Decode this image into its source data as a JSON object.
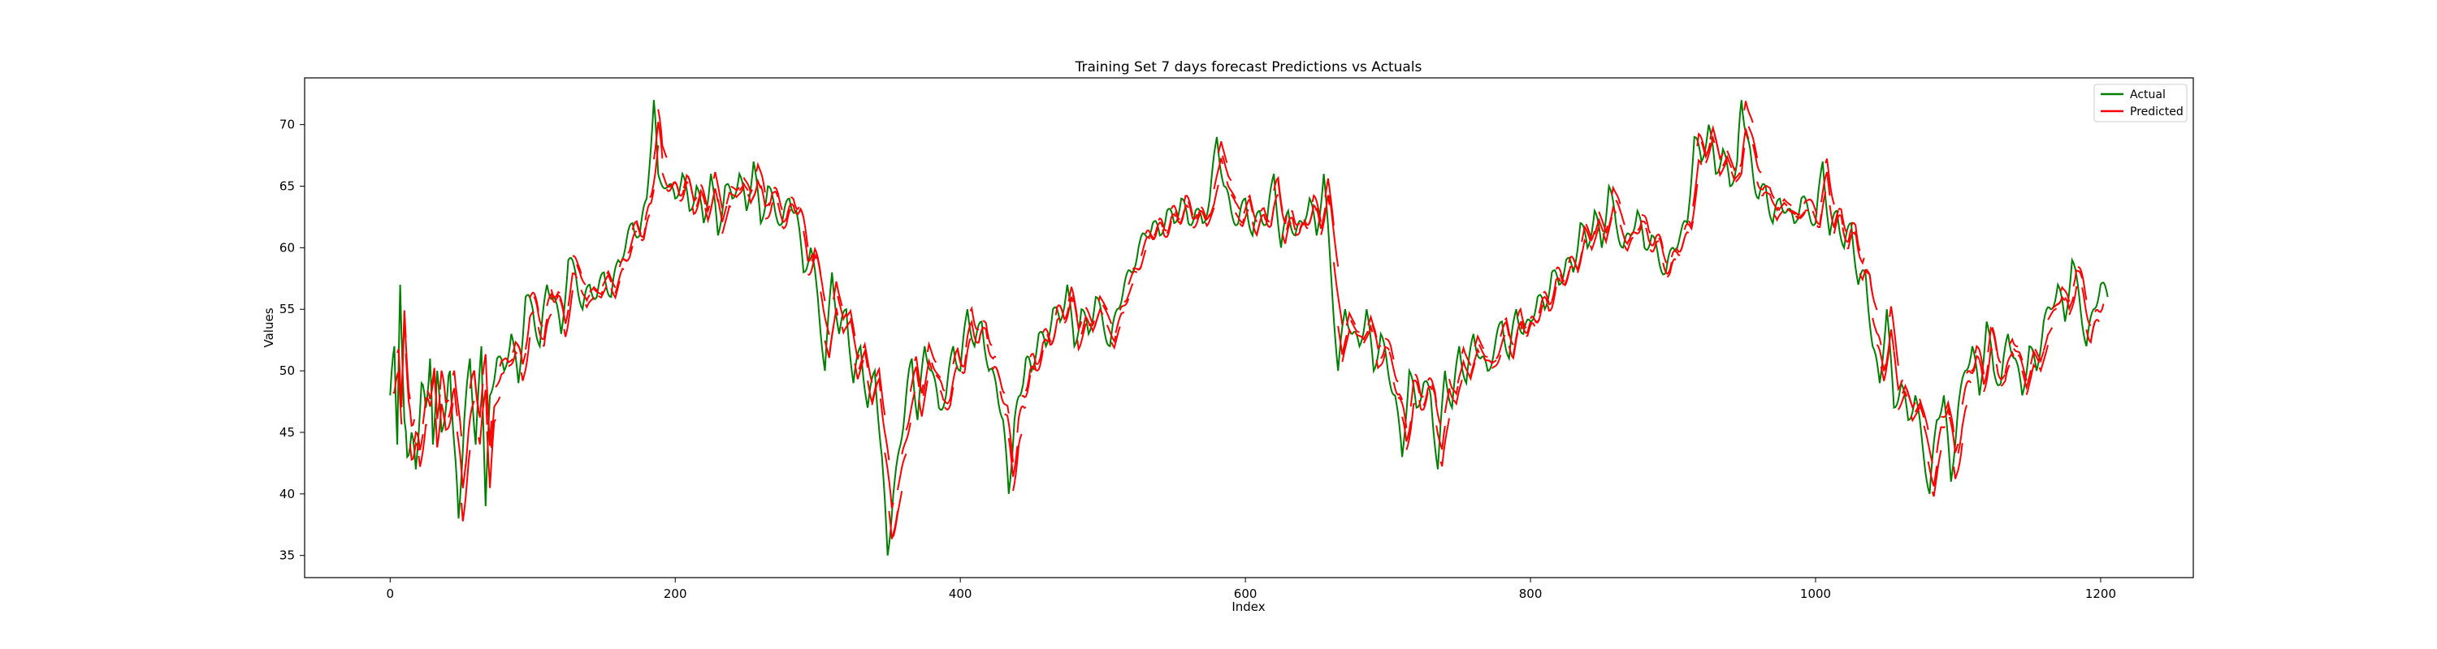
{
  "chart_data": {
    "type": "line",
    "title": "Training Set 7 days forecast Predictions vs Actuals",
    "xlabel": "Index",
    "ylabel": "Values",
    "xlim": [
      -60,
      1265
    ],
    "ylim": [
      33.2,
      73.8
    ],
    "xticks": [
      0,
      200,
      400,
      600,
      800,
      1000,
      1200
    ],
    "yticks": [
      35,
      40,
      45,
      50,
      55,
      60,
      65,
      70
    ],
    "grid": false,
    "legend": "top-right",
    "series": [
      {
        "name": "Actual",
        "color": "#008000",
        "keypoints": [
          [
            0,
            48
          ],
          [
            3,
            52
          ],
          [
            5,
            44
          ],
          [
            7,
            57
          ],
          [
            10,
            46
          ],
          [
            12,
            43
          ],
          [
            15,
            45
          ],
          [
            18,
            42
          ],
          [
            22,
            49
          ],
          [
            25,
            47
          ],
          [
            28,
            51
          ],
          [
            30,
            44
          ],
          [
            33,
            50
          ],
          [
            36,
            45
          ],
          [
            40,
            48
          ],
          [
            42,
            50
          ],
          [
            45,
            44
          ],
          [
            48,
            38
          ],
          [
            52,
            46
          ],
          [
            56,
            51
          ],
          [
            60,
            44
          ],
          [
            64,
            52
          ],
          [
            67,
            39
          ],
          [
            70,
            48
          ],
          [
            75,
            51
          ],
          [
            80,
            50
          ],
          [
            85,
            53
          ],
          [
            90,
            49
          ],
          [
            95,
            56
          ],
          [
            100,
            55
          ],
          [
            105,
            52
          ],
          [
            110,
            57
          ],
          [
            115,
            56
          ],
          [
            120,
            53
          ],
          [
            125,
            59
          ],
          [
            130,
            58
          ],
          [
            135,
            55
          ],
          [
            140,
            57
          ],
          [
            145,
            56
          ],
          [
            150,
            58
          ],
          [
            155,
            56
          ],
          [
            160,
            59
          ],
          [
            165,
            60
          ],
          [
            170,
            62
          ],
          [
            175,
            61
          ],
          [
            180,
            64
          ],
          [
            185,
            72
          ],
          [
            188,
            66
          ],
          [
            195,
            65
          ],
          [
            200,
            64
          ],
          [
            205,
            66
          ],
          [
            210,
            63
          ],
          [
            215,
            65
          ],
          [
            220,
            62
          ],
          [
            225,
            66
          ],
          [
            230,
            61
          ],
          [
            235,
            65
          ],
          [
            240,
            64
          ],
          [
            245,
            66
          ],
          [
            250,
            63
          ],
          [
            255,
            67
          ],
          [
            260,
            62
          ],
          [
            265,
            65
          ],
          [
            270,
            63
          ],
          [
            275,
            62
          ],
          [
            280,
            64
          ],
          [
            285,
            63
          ],
          [
            290,
            58
          ],
          [
            295,
            60
          ],
          [
            300,
            56
          ],
          [
            305,
            50
          ],
          [
            310,
            58
          ],
          [
            315,
            53
          ],
          [
            320,
            55
          ],
          [
            325,
            49
          ],
          [
            330,
            52
          ],
          [
            335,
            47
          ],
          [
            340,
            50
          ],
          [
            345,
            43
          ],
          [
            349,
            35
          ],
          [
            353,
            40
          ],
          [
            358,
            44
          ],
          [
            362,
            48
          ],
          [
            366,
            51
          ],
          [
            370,
            46
          ],
          [
            375,
            52
          ],
          [
            380,
            50
          ],
          [
            385,
            47
          ],
          [
            390,
            48
          ],
          [
            395,
            52
          ],
          [
            400,
            50
          ],
          [
            405,
            55
          ],
          [
            410,
            52
          ],
          [
            415,
            54
          ],
          [
            420,
            50
          ],
          [
            425,
            49
          ],
          [
            430,
            46
          ],
          [
            434,
            40
          ],
          [
            438,
            46
          ],
          [
            442,
            48
          ],
          [
            446,
            51
          ],
          [
            450,
            50
          ],
          [
            455,
            53
          ],
          [
            460,
            52
          ],
          [
            465,
            55
          ],
          [
            470,
            54
          ],
          [
            475,
            57
          ],
          [
            480,
            52
          ],
          [
            485,
            55
          ],
          [
            490,
            53
          ],
          [
            495,
            56
          ],
          [
            500,
            54
          ],
          [
            505,
            52
          ],
          [
            510,
            55
          ],
          [
            515,
            57
          ],
          [
            520,
            58
          ],
          [
            525,
            60
          ],
          [
            530,
            61
          ],
          [
            535,
            62
          ],
          [
            540,
            61
          ],
          [
            545,
            63
          ],
          [
            550,
            62
          ],
          [
            555,
            64
          ],
          [
            560,
            62
          ],
          [
            565,
            63
          ],
          [
            570,
            62
          ],
          [
            575,
            64
          ],
          [
            580,
            69
          ],
          [
            585,
            65
          ],
          [
            590,
            63
          ],
          [
            595,
            62
          ],
          [
            600,
            64
          ],
          [
            605,
            61
          ],
          [
            610,
            63
          ],
          [
            615,
            62
          ],
          [
            620,
            66
          ],
          [
            625,
            60
          ],
          [
            630,
            63
          ],
          [
            635,
            61
          ],
          [
            640,
            62
          ],
          [
            645,
            64
          ],
          [
            650,
            61
          ],
          [
            655,
            66
          ],
          [
            660,
            58
          ],
          [
            665,
            50
          ],
          [
            670,
            55
          ],
          [
            675,
            53
          ],
          [
            680,
            52
          ],
          [
            685,
            55
          ],
          [
            690,
            50
          ],
          [
            695,
            53
          ],
          [
            700,
            50
          ],
          [
            705,
            48
          ],
          [
            710,
            43
          ],
          [
            715,
            50
          ],
          [
            720,
            47
          ],
          [
            725,
            49
          ],
          [
            730,
            48
          ],
          [
            735,
            42
          ],
          [
            740,
            50
          ],
          [
            745,
            47
          ],
          [
            750,
            52
          ],
          [
            755,
            49
          ],
          [
            760,
            53
          ],
          [
            765,
            51
          ],
          [
            770,
            50
          ],
          [
            775,
            52
          ],
          [
            780,
            54
          ],
          [
            785,
            51
          ],
          [
            790,
            55
          ],
          [
            795,
            53
          ],
          [
            800,
            54
          ],
          [
            805,
            56
          ],
          [
            810,
            55
          ],
          [
            815,
            58
          ],
          [
            820,
            57
          ],
          [
            825,
            59
          ],
          [
            830,
            58
          ],
          [
            835,
            62
          ],
          [
            840,
            60
          ],
          [
            845,
            63
          ],
          [
            850,
            60
          ],
          [
            855,
            65
          ],
          [
            860,
            62
          ],
          [
            865,
            60
          ],
          [
            870,
            61
          ],
          [
            875,
            63
          ],
          [
            880,
            60
          ],
          [
            885,
            61
          ],
          [
            890,
            59
          ],
          [
            895,
            58
          ],
          [
            900,
            60
          ],
          [
            905,
            61
          ],
          [
            910,
            62
          ],
          [
            915,
            69
          ],
          [
            920,
            67
          ],
          [
            925,
            70
          ],
          [
            930,
            66
          ],
          [
            935,
            68
          ],
          [
            940,
            65
          ],
          [
            945,
            67
          ],
          [
            948,
            72
          ],
          [
            952,
            69
          ],
          [
            956,
            66
          ],
          [
            960,
            64
          ],
          [
            965,
            65
          ],
          [
            970,
            62
          ],
          [
            975,
            64
          ],
          [
            980,
            63
          ],
          [
            985,
            62
          ],
          [
            990,
            64
          ],
          [
            995,
            63
          ],
          [
            1000,
            62
          ],
          [
            1005,
            67
          ],
          [
            1010,
            61
          ],
          [
            1015,
            63
          ],
          [
            1020,
            60
          ],
          [
            1025,
            62
          ],
          [
            1030,
            57
          ],
          [
            1035,
            58
          ],
          [
            1040,
            52
          ],
          [
            1045,
            49
          ],
          [
            1050,
            55
          ],
          [
            1055,
            47
          ],
          [
            1060,
            49
          ],
          [
            1065,
            46
          ],
          [
            1070,
            48
          ],
          [
            1075,
            44
          ],
          [
            1080,
            40
          ],
          [
            1085,
            46
          ],
          [
            1090,
            48
          ],
          [
            1095,
            41
          ],
          [
            1100,
            47
          ],
          [
            1105,
            50
          ],
          [
            1110,
            52
          ],
          [
            1115,
            48
          ],
          [
            1120,
            54
          ],
          [
            1125,
            50
          ],
          [
            1130,
            49
          ],
          [
            1135,
            53
          ],
          [
            1140,
            51
          ],
          [
            1145,
            48
          ],
          [
            1150,
            52
          ],
          [
            1155,
            50
          ],
          [
            1160,
            54
          ],
          [
            1165,
            55
          ],
          [
            1170,
            57
          ],
          [
            1175,
            54
          ],
          [
            1180,
            59
          ],
          [
            1185,
            56
          ],
          [
            1190,
            52
          ],
          [
            1195,
            55
          ],
          [
            1200,
            57
          ],
          [
            1205,
            56
          ]
        ]
      },
      {
        "name": "Predicted",
        "color": "#ff0000",
        "horizon": 7
      }
    ]
  }
}
